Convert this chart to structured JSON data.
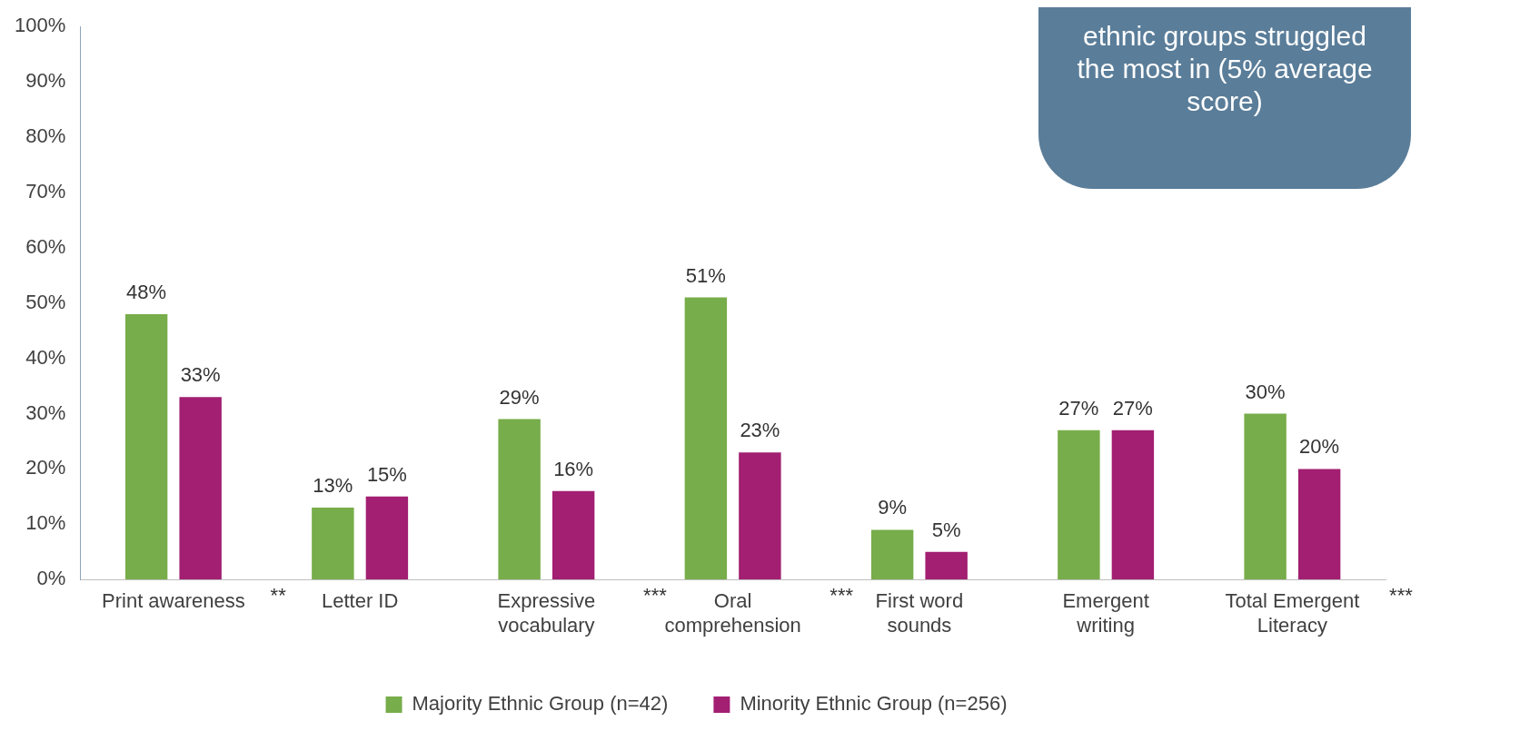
{
  "chart_data": {
    "type": "bar",
    "categories": [
      "Print awareness",
      "Letter ID",
      "Expressive vocabulary",
      "Oral comprehension",
      "First word sounds",
      "Emergent writing",
      "Total Emergent Literacy"
    ],
    "series": [
      {
        "name": "Majority Ethnic Group (n=42)",
        "color": "#77ad4a",
        "values": [
          48,
          13,
          29,
          51,
          9,
          27,
          30
        ],
        "value_labels": [
          "48%",
          "13%",
          "29%",
          "51%",
          "9%",
          "27%",
          "30%"
        ]
      },
      {
        "name": "Minority Ethnic Group (n=256)",
        "color": "#a21f72",
        "values": [
          33,
          15,
          16,
          23,
          5,
          27,
          20
        ],
        "value_labels": [
          "33%",
          "15%",
          "16%",
          "23%",
          "5%",
          "27%",
          "20%"
        ]
      }
    ],
    "ylim": [
      0,
      100
    ],
    "yticks": [
      {
        "value": 0,
        "label": "0%"
      },
      {
        "value": 10,
        "label": "10%"
      },
      {
        "value": 20,
        "label": "20%"
      },
      {
        "value": 30,
        "label": "30%"
      },
      {
        "value": 40,
        "label": "40%"
      },
      {
        "value": 50,
        "label": "50%"
      },
      {
        "value": 60,
        "label": "60%"
      },
      {
        "value": 70,
        "label": "70%"
      },
      {
        "value": 80,
        "label": "80%"
      },
      {
        "value": 90,
        "label": "90%"
      },
      {
        "value": 100,
        "label": "100%"
      }
    ],
    "grid": false,
    "legend": "bottom",
    "annotations": [
      "ethnic groups struggled the most in (5% average score)",
      "**",
      "***",
      "***",
      "***"
    ]
  }
}
